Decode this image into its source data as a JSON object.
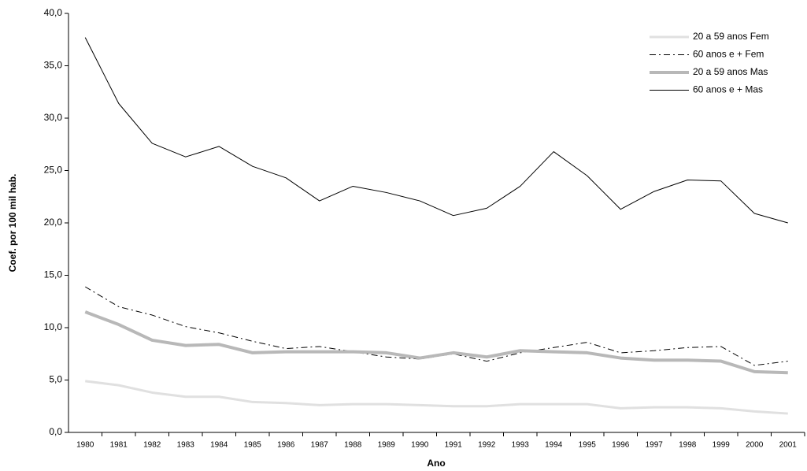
{
  "chart_data": {
    "type": "line",
    "y_label": "Coef. por 100 mil hab.",
    "x_label": "Ano",
    "categories": [
      "1980",
      "1981",
      "1982",
      "1983",
      "1984",
      "1985",
      "1986",
      "1987",
      "1988",
      "1989",
      "1990",
      "1991",
      "1992",
      "1993",
      "1994",
      "1995",
      "1996",
      "1997",
      "1998",
      "1999",
      "2000",
      "2001"
    ],
    "ylim": [
      0,
      40
    ],
    "yticks": [
      {
        "value": 0,
        "label": "0,0"
      },
      {
        "value": 5,
        "label": "5,0"
      },
      {
        "value": 10,
        "label": "10,0"
      },
      {
        "value": 15,
        "label": "15,0"
      },
      {
        "value": 20,
        "label": "20,0"
      },
      {
        "value": 25,
        "label": "25,0"
      },
      {
        "value": 30,
        "label": "30,0"
      },
      {
        "value": 35,
        "label": "35,0"
      },
      {
        "value": 40,
        "label": "40,0"
      }
    ],
    "grid": false,
    "legend": "upper right",
    "series": [
      {
        "name": "20 a 59 anos Fem",
        "color": "#e0e0e0",
        "line_width": 3,
        "dash": "solid",
        "values": [
          4.9,
          4.5,
          3.8,
          3.4,
          3.4,
          2.9,
          2.8,
          2.6,
          2.7,
          2.7,
          2.6,
          2.5,
          2.5,
          2.7,
          2.7,
          2.7,
          2.3,
          2.4,
          2.4,
          2.3,
          2.0,
          1.8
        ]
      },
      {
        "name": "60 anos e + Fem",
        "color": "#000000",
        "line_width": 1,
        "dash": "dashdot",
        "values": [
          13.9,
          12.0,
          11.2,
          10.1,
          9.5,
          8.7,
          8.0,
          8.2,
          7.7,
          7.2,
          7.0,
          7.5,
          6.8,
          7.6,
          8.1,
          8.6,
          7.6,
          7.8,
          8.1,
          8.2,
          6.4,
          6.8
        ]
      },
      {
        "name": "20 a 59 anos Mas",
        "color": "#b8b8b8",
        "line_width": 4,
        "dash": "solid",
        "values": [
          11.5,
          10.3,
          8.8,
          8.3,
          8.4,
          7.6,
          7.7,
          7.7,
          7.7,
          7.6,
          7.1,
          7.6,
          7.2,
          7.8,
          7.7,
          7.6,
          7.1,
          6.9,
          6.9,
          6.8,
          5.8,
          5.7
        ]
      },
      {
        "name": "60 anos e + Mas",
        "color": "#000000",
        "line_width": 1,
        "dash": "solid",
        "values": [
          37.7,
          31.4,
          27.6,
          26.3,
          27.3,
          25.4,
          24.3,
          22.1,
          23.5,
          22.9,
          22.1,
          20.7,
          21.4,
          23.5,
          26.8,
          24.5,
          21.3,
          23.0,
          24.1,
          24.0,
          20.9,
          20.0
        ]
      }
    ]
  }
}
